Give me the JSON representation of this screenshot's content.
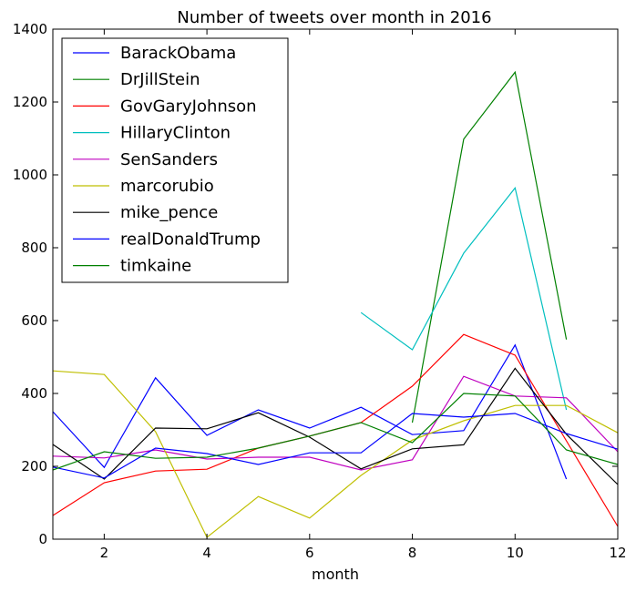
{
  "chart_data": {
    "type": "line",
    "title": "Number of tweets over month in 2016",
    "xlabel": "month",
    "ylabel": "",
    "xlim": [
      1,
      12
    ],
    "ylim": [
      0,
      1400
    ],
    "xticks": [
      2,
      4,
      6,
      8,
      10,
      12
    ],
    "yticks": [
      0,
      200,
      400,
      600,
      800,
      1000,
      1200,
      1400
    ],
    "legend_position": "top-left",
    "grid": false,
    "series": [
      {
        "name": "BarackObama",
        "color": "#0000ff",
        "x": [
          1,
          2,
          3,
          4,
          5,
          6,
          7,
          8,
          9,
          10,
          11
        ],
        "y": [
          350,
          197,
          443,
          285,
          355,
          305,
          362,
          287,
          298,
          533,
          165
        ]
      },
      {
        "name": "DrJillStein",
        "color": "#008000",
        "x": [
          8,
          9,
          10,
          11
        ],
        "y": [
          320,
          1098,
          1282,
          548
        ]
      },
      {
        "name": "GovGaryJohnson",
        "color": "#ff0000",
        "x": [
          1,
          2,
          3,
          4,
          5,
          6,
          7,
          8,
          9,
          10,
          11,
          12
        ],
        "y": [
          65,
          155,
          187,
          192,
          250,
          283,
          320,
          420,
          562,
          505,
          270,
          35
        ]
      },
      {
        "name": "HillaryClinton",
        "color": "#00bfbf",
        "x": [
          7,
          8,
          9,
          10,
          11
        ],
        "y": [
          622,
          520,
          785,
          964,
          355
        ]
      },
      {
        "name": "SenSanders",
        "color": "#bf00bf",
        "x": [
          1,
          2,
          3,
          4,
          5,
          6,
          7,
          8,
          9,
          10,
          11,
          12
        ],
        "y": [
          228,
          223,
          245,
          220,
          225,
          225,
          190,
          218,
          447,
          393,
          388,
          240
        ]
      },
      {
        "name": "marcorubio",
        "color": "#bfbf00",
        "x": [
          1,
          2,
          3,
          4,
          5,
          6,
          7,
          8,
          9,
          10,
          11,
          12
        ],
        "y": [
          462,
          452,
          295,
          5,
          117,
          58,
          175,
          272,
          325,
          367,
          367,
          292
        ]
      },
      {
        "name": "mike_pence",
        "color": "#000000",
        "x": [
          1,
          2,
          3,
          4,
          5,
          6,
          7,
          8,
          9,
          10,
          11,
          12
        ],
        "y": [
          260,
          165,
          305,
          303,
          347,
          280,
          193,
          248,
          259,
          469,
          288,
          150
        ]
      },
      {
        "name": "realDonaldTrump",
        "color": "#0000ff",
        "x": [
          1,
          2,
          3,
          4,
          5,
          6,
          7,
          8,
          9,
          10,
          11,
          12
        ],
        "y": [
          198,
          168,
          250,
          235,
          205,
          237,
          237,
          345,
          335,
          345,
          290,
          247
        ]
      },
      {
        "name": "timkaine",
        "color": "#008000",
        "x": [
          1,
          2,
          3,
          4,
          5,
          6,
          7,
          8,
          9,
          10,
          11,
          12
        ],
        "y": [
          190,
          240,
          222,
          225,
          250,
          283,
          320,
          265,
          400,
          393,
          245,
          205
        ]
      }
    ]
  }
}
